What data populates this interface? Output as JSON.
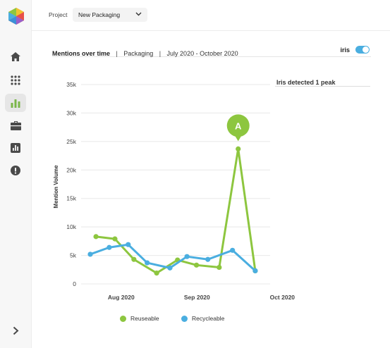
{
  "colors": {
    "reuseable": "#8dc63f",
    "recyclable": "#4aaee0",
    "annotation": "#8dc63f",
    "toggle": "#4aaee0",
    "grid": "#e8e8e8"
  },
  "sidebar": {
    "items": [
      {
        "name": "home-icon"
      },
      {
        "name": "apps-grid-icon"
      },
      {
        "name": "bar-chart-icon",
        "active": true
      },
      {
        "name": "briefcase-icon"
      },
      {
        "name": "report-icon"
      },
      {
        "name": "alert-icon"
      }
    ],
    "expand_icon": "chevron-right-icon"
  },
  "topbar": {
    "project_label": "Project",
    "project_value": "New Packaging"
  },
  "header": {
    "title": "Mentions over time",
    "separator": "|",
    "category": "Packaging",
    "date_range": "July 2020 - October 2020",
    "iris_label": "iris",
    "iris_enabled": true
  },
  "iris_panel": {
    "text": "Iris detected 1 peak"
  },
  "chart_data": {
    "type": "line",
    "ylabel": "Mention Volume",
    "ylim": [
      0,
      35000
    ],
    "y_ticks": [
      {
        "value": 0,
        "label": "0"
      },
      {
        "value": 5000,
        "label": "5k"
      },
      {
        "value": 10000,
        "label": "10k"
      },
      {
        "value": 15000,
        "label": "15k"
      },
      {
        "value": 20000,
        "label": "20k"
      },
      {
        "value": 25000,
        "label": "25k"
      },
      {
        "value": 30000,
        "label": "30k"
      },
      {
        "value": 35000,
        "label": "35k"
      }
    ],
    "x_ticks": [
      {
        "x": 2,
        "label": "Aug 2020"
      },
      {
        "x": 6,
        "label": "Sep 2020"
      },
      {
        "x": 10.5,
        "label": "Oct 2020"
      }
    ],
    "xlim": [
      0,
      13
    ],
    "grid": true,
    "legend_position": "bottom",
    "series": [
      {
        "name": "Reuseable",
        "color": "#8dc63f",
        "x": [
          0.3,
          1.3,
          2.3,
          3.5,
          4.6,
          5.6,
          6.8,
          7.8,
          8.7
        ],
        "values": [
          8300,
          7900,
          4300,
          1900,
          4200,
          3300,
          2900,
          23700,
          2300
        ]
      },
      {
        "name": "Recycleable",
        "color": "#4aaee0",
        "x": [
          0,
          1,
          2,
          3,
          4.2,
          5.1,
          6.2,
          7.5,
          8.7
        ],
        "values": [
          5200,
          6400,
          6900,
          3700,
          2800,
          4800,
          4300,
          5900,
          2300
        ]
      }
    ],
    "annotations": [
      {
        "label": "A",
        "series": "Reuseable",
        "point_index": 7
      }
    ]
  },
  "legend": [
    {
      "label": "Reuseable",
      "color": "#8dc63f"
    },
    {
      "label": "Recycleable",
      "color": "#4aaee0"
    }
  ]
}
